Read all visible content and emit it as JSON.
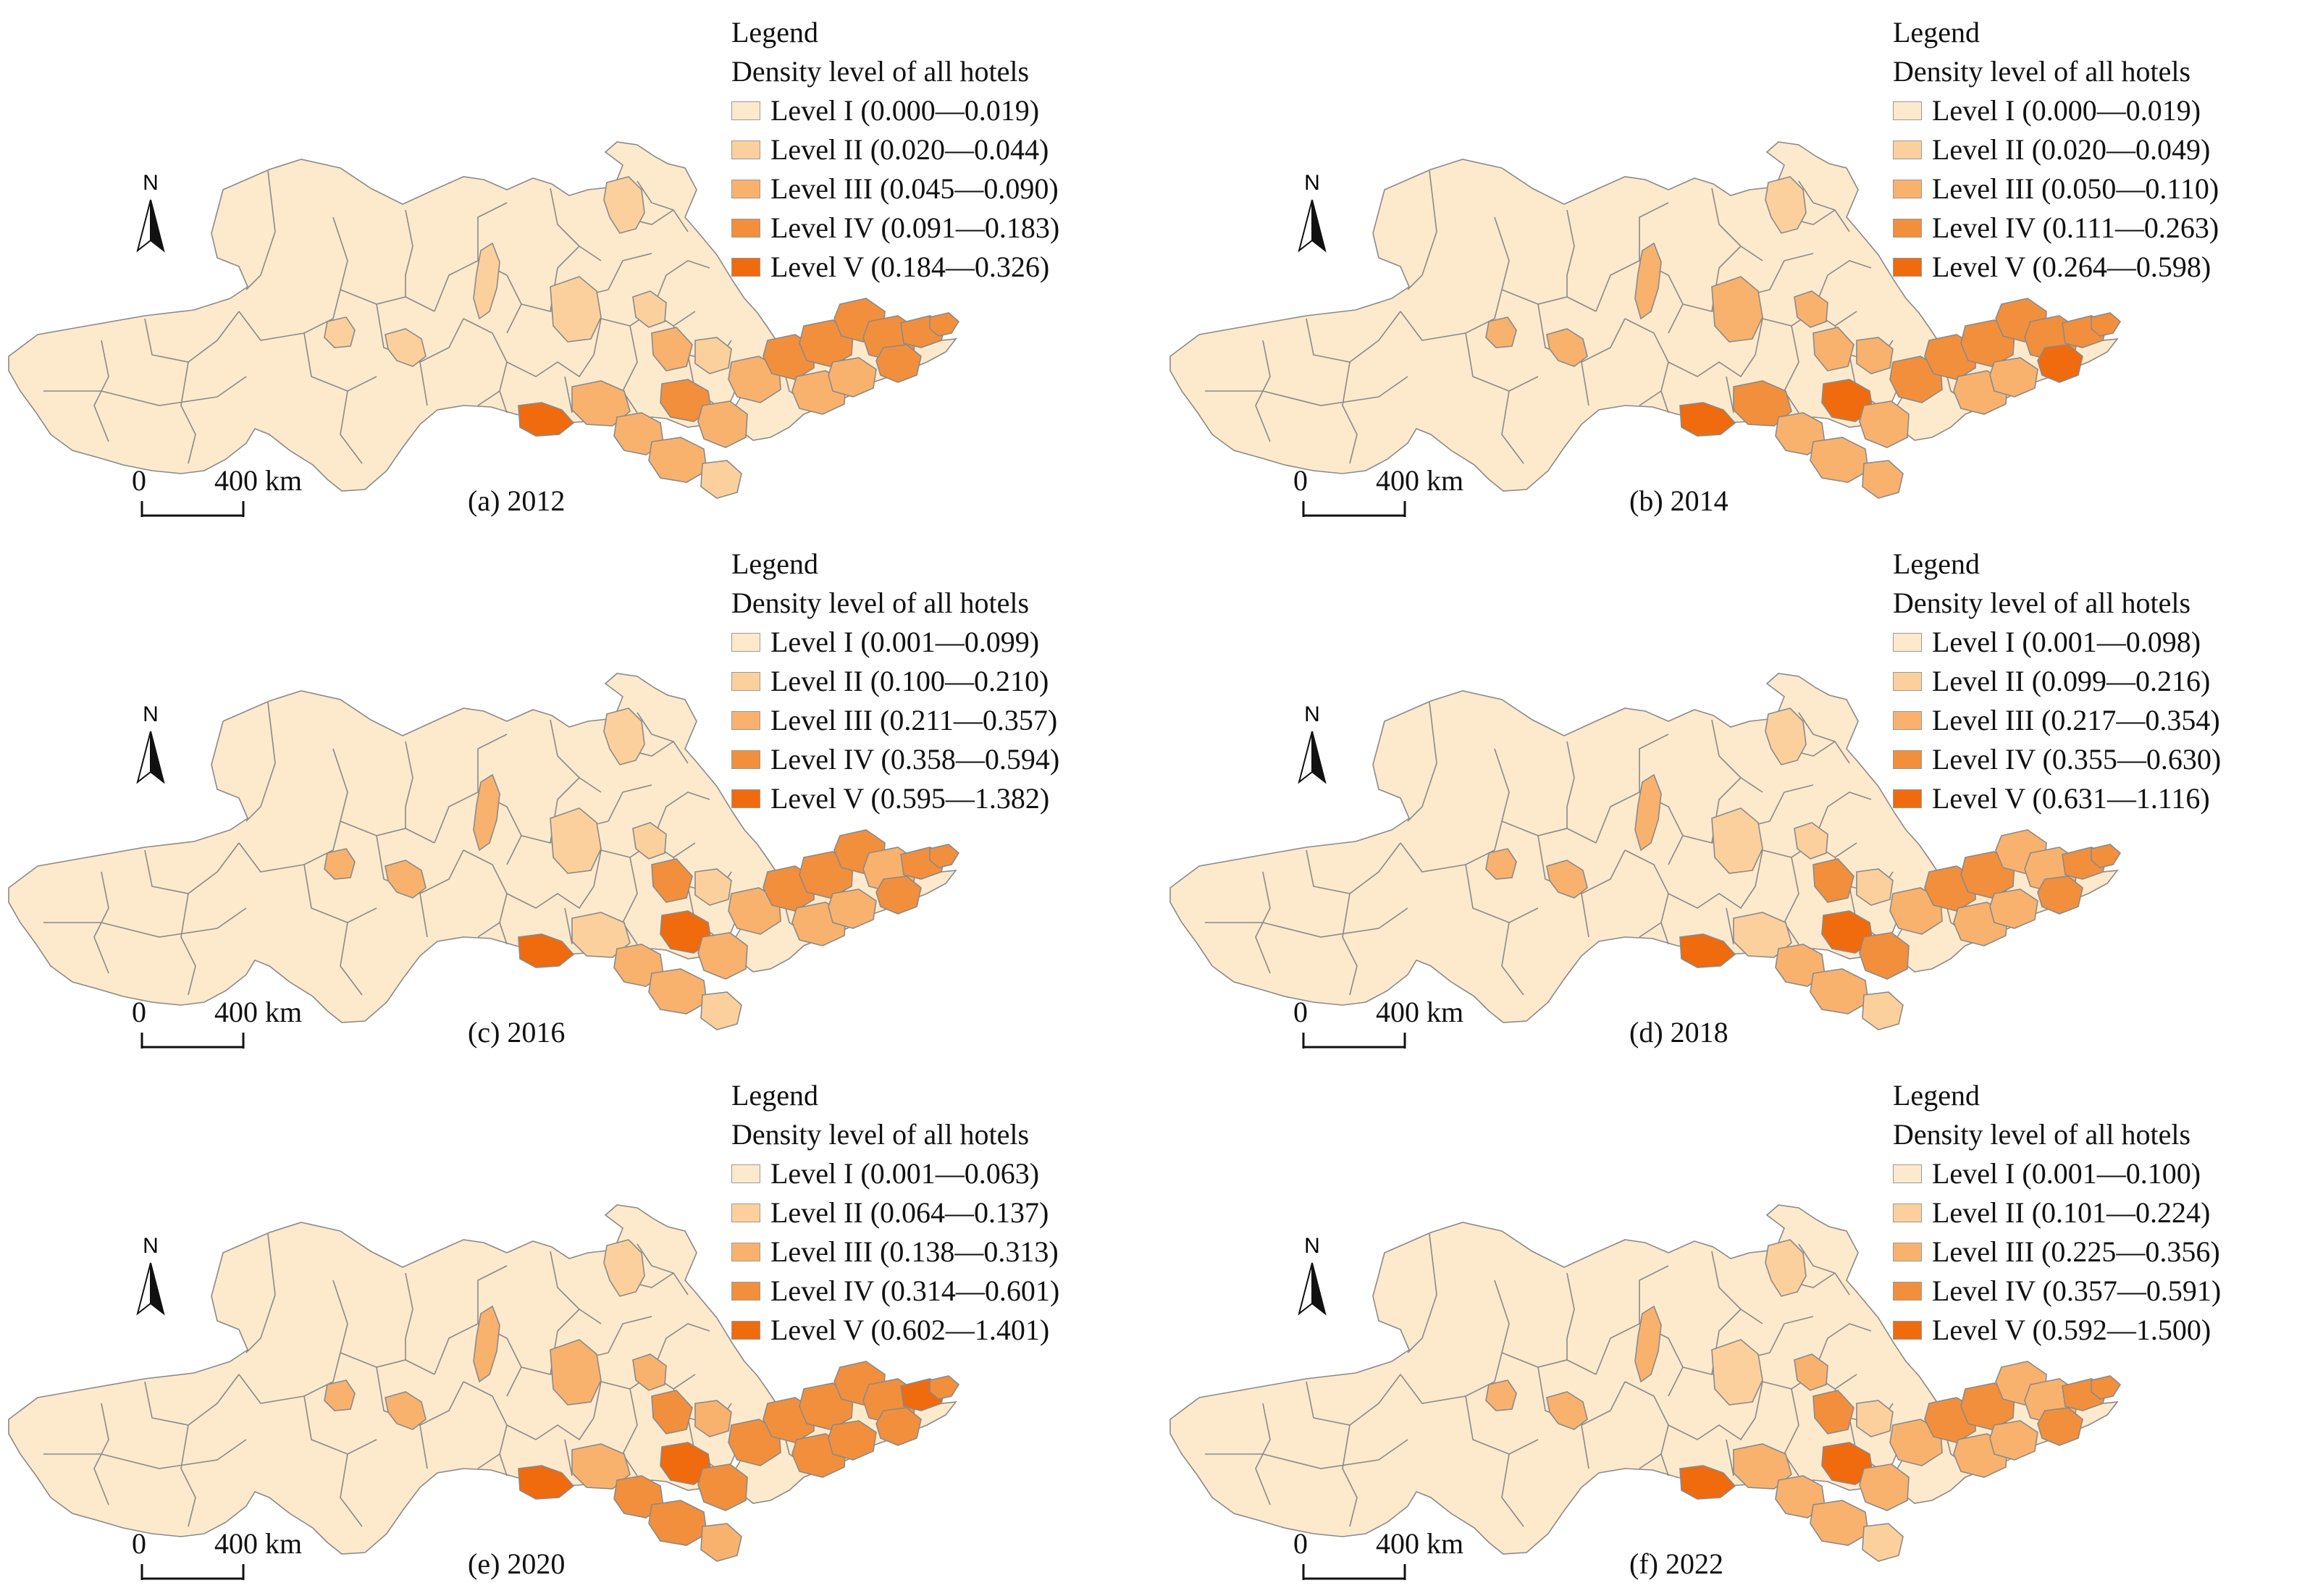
{
  "common": {
    "north_label": "N",
    "scale_zero": "0",
    "scale_max": "400 km",
    "legend_title": "Legend",
    "legend_subtitle": "Density level of all hotels"
  },
  "colors": {
    "level_1": "#fde9cc",
    "level_2": "#fcd09d",
    "level_3": "#f8b26e",
    "level_4": "#f28f3d",
    "level_5": "#f06a0e",
    "boundary": "#8a8a8a"
  },
  "panels": [
    {
      "caption": "(a) 2012",
      "legend": [
        "Level I (0.000—0.019)",
        "Level II (0.020—0.044)",
        "Level III (0.045—0.090)",
        "Level IV (0.091—0.183)",
        "Level V (0.184—0.326)"
      ]
    },
    {
      "caption": "(b) 2014",
      "legend": [
        "Level I (0.000—0.019)",
        "Level II (0.020—0.049)",
        "Level III (0.050—0.110)",
        "Level IV (0.111—0.263)",
        "Level V (0.264—0.598)"
      ]
    },
    {
      "caption": "(c) 2016",
      "legend": [
        "Level I (0.001—0.099)",
        "Level II (0.100—0.210)",
        "Level III (0.211—0.357)",
        "Level IV (0.358—0.594)",
        "Level V (0.595—1.382)"
      ]
    },
    {
      "caption": "(d) 2018",
      "legend": [
        "Level I (0.001—0.098)",
        "Level II (0.099—0.216)",
        "Level III (0.217—0.354)",
        "Level IV (0.355—0.630)",
        "Level V (0.631—1.116)"
      ]
    },
    {
      "caption": "(e) 2020",
      "legend": [
        "Level I (0.001—0.063)",
        "Level II (0.064—0.137)",
        "Level III (0.138—0.313)",
        "Level IV (0.314—0.601)",
        "Level V (0.602—1.401)"
      ]
    },
    {
      "caption": "(f) 2022",
      "legend": [
        "Level I (0.001—0.100)",
        "Level II (0.101—0.224)",
        "Level III (0.225—0.356)",
        "Level IV (0.357—0.591)",
        "Level V (0.592—1.500)"
      ]
    }
  ]
}
